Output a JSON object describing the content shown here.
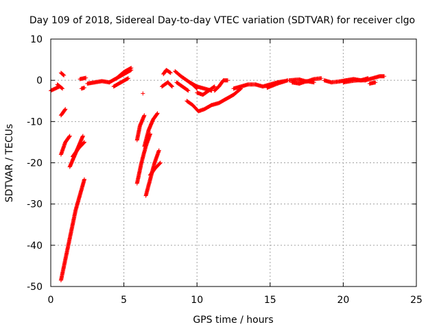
{
  "chart_data": {
    "type": "scatter",
    "title": "Day 109 of 2018, Sidereal Day-to-day VTEC variation (SDTVAR) for receiver clgo",
    "xlabel": "GPS time / hours",
    "ylabel": "SDTVAR / TECUs",
    "xlim": [
      0,
      25
    ],
    "ylim": [
      -50,
      10
    ],
    "xticks": [
      0,
      5,
      10,
      15,
      20,
      25
    ],
    "yticks": [
      10,
      0,
      -10,
      -20,
      -30,
      -40,
      -50
    ],
    "grid": true,
    "marker": "+",
    "color": "#ff0000",
    "segments": [
      {
        "x": [
          0.0,
          0.3,
          0.6
        ],
        "y": [
          -2.5,
          -2.0,
          -1.5
        ]
      },
      {
        "x": [
          0.45,
          0.8
        ],
        "y": [
          -1.0,
          -2.0
        ]
      },
      {
        "x": [
          0.7,
          0.9
        ],
        "y": [
          1.8,
          1.2
        ]
      },
      {
        "x": [
          0.7,
          1.0
        ],
        "y": [
          -8.5,
          -7.0
        ]
      },
      {
        "x": [
          0.7,
          1.0,
          1.3
        ],
        "y": [
          -18.0,
          -15.0,
          -13.5
        ]
      },
      {
        "x": [
          1.3,
          1.6,
          1.9,
          2.2
        ],
        "y": [
          -21.0,
          -18.5,
          -16.0,
          -13.5
        ]
      },
      {
        "x": [
          1.5,
          1.9,
          2.3
        ],
        "y": [
          -18.5,
          -16.5,
          -15.0
        ]
      },
      {
        "x": [
          0.7,
          1.2,
          1.7,
          2.3
        ],
        "y": [
          -48.5,
          -40.0,
          -31.5,
          -24.0
        ]
      },
      {
        "x": [
          2.0,
          2.4
        ],
        "y": [
          0.3,
          0.6
        ]
      },
      {
        "x": [
          2.1,
          2.3
        ],
        "y": [
          -2.0,
          -1.8
        ]
      },
      {
        "x": [
          2.5,
          3.0,
          3.5,
          4.0
        ],
        "y": [
          -0.8,
          -0.5,
          -0.2,
          -0.5
        ]
      },
      {
        "x": [
          4.0,
          4.5,
          5.0,
          5.5
        ],
        "y": [
          -0.5,
          0.5,
          2.0,
          3.0
        ]
      },
      {
        "x": [
          4.3,
          4.8,
          5.3
        ],
        "y": [
          -1.5,
          -0.5,
          0.5
        ]
      },
      {
        "x": [
          4.5,
          5.0,
          5.5
        ],
        "y": [
          0.5,
          1.5,
          2.5
        ]
      },
      {
        "x": [
          6.3
        ],
        "y": [
          -3.2
        ]
      },
      {
        "x": [
          5.9,
          6.1,
          6.4
        ],
        "y": [
          -14.5,
          -11.0,
          -8.5
        ]
      },
      {
        "x": [
          5.9,
          6.2,
          6.5,
          6.8
        ],
        "y": [
          -25.0,
          -20.0,
          -16.0,
          -13.0
        ]
      },
      {
        "x": [
          6.4,
          6.7,
          7.0,
          7.3
        ],
        "y": [
          -16.0,
          -12.0,
          -9.5,
          -8.0
        ]
      },
      {
        "x": [
          6.5,
          6.8,
          7.1,
          7.4
        ],
        "y": [
          -28.0,
          -24.0,
          -20.0,
          -17.0
        ]
      },
      {
        "x": [
          6.8,
          7.1,
          7.5
        ],
        "y": [
          -23.0,
          -21.5,
          -20.0
        ]
      },
      {
        "x": [
          7.6,
          8.0,
          8.3
        ],
        "y": [
          -1.5,
          -0.5,
          -1.5
        ]
      },
      {
        "x": [
          7.7,
          7.9,
          8.2
        ],
        "y": [
          1.5,
          2.5,
          1.8
        ]
      },
      {
        "x": [
          8.5,
          8.9,
          9.3,
          9.7,
          10.0
        ],
        "y": [
          2.2,
          1.0,
          0.0,
          -1.0,
          -2.0
        ]
      },
      {
        "x": [
          8.6,
          9.0,
          9.4
        ],
        "y": [
          -0.5,
          -1.5,
          -2.5
        ]
      },
      {
        "x": [
          9.5,
          10.0,
          10.5,
          11.0
        ],
        "y": [
          -0.5,
          -1.5,
          -2.0,
          -2.5
        ]
      },
      {
        "x": [
          10.0,
          10.4,
          10.8,
          11.2
        ],
        "y": [
          -3.0,
          -3.5,
          -2.5,
          -1.5
        ]
      },
      {
        "x": [
          11.2,
          11.5,
          11.8,
          12.1
        ],
        "y": [
          -2.5,
          -1.5,
          0.0,
          0.0
        ]
      },
      {
        "x": [
          9.3,
          9.7,
          10.1,
          10.5,
          11.0,
          11.5,
          12.0,
          12.5,
          13.0
        ],
        "y": [
          -5.0,
          -6.0,
          -7.5,
          -7.0,
          -6.0,
          -5.5,
          -4.5,
          -3.5,
          -2.0
        ]
      },
      {
        "x": [
          12.5,
          13.0,
          13.5,
          14.0,
          14.5,
          15.0,
          15.5,
          16.0
        ],
        "y": [
          -2.0,
          -1.5,
          -1.0,
          -1.0,
          -1.5,
          -1.0,
          -0.5,
          -0.2
        ]
      },
      {
        "x": [
          14.8,
          15.5,
          16.2
        ],
        "y": [
          -1.8,
          -0.8,
          0.0
        ]
      },
      {
        "x": [
          16.3,
          17.0,
          17.5,
          18.0,
          18.5
        ],
        "y": [
          0.0,
          0.2,
          -0.3,
          0.3,
          0.5
        ]
      },
      {
        "x": [
          16.5,
          17.0,
          17.5,
          18.0
        ],
        "y": [
          -0.5,
          -0.8,
          -0.2,
          -0.5
        ]
      },
      {
        "x": [
          18.7,
          19.2,
          19.7,
          20.2
        ],
        "y": [
          0.0,
          -0.5,
          -0.3,
          0.0
        ]
      },
      {
        "x": [
          20.2,
          20.7,
          21.2,
          21.7
        ],
        "y": [
          0.0,
          0.3,
          0.0,
          0.5
        ]
      },
      {
        "x": [
          20.0,
          20.5,
          21.0,
          21.5
        ],
        "y": [
          -0.5,
          -0.2,
          0.0,
          0.0
        ]
      },
      {
        "x": [
          21.5,
          22.0,
          22.5,
          22.8
        ],
        "y": [
          0.0,
          0.5,
          1.0,
          1.0
        ]
      },
      {
        "x": [
          21.8,
          22.2
        ],
        "y": [
          -0.8,
          -0.5
        ]
      }
    ]
  }
}
